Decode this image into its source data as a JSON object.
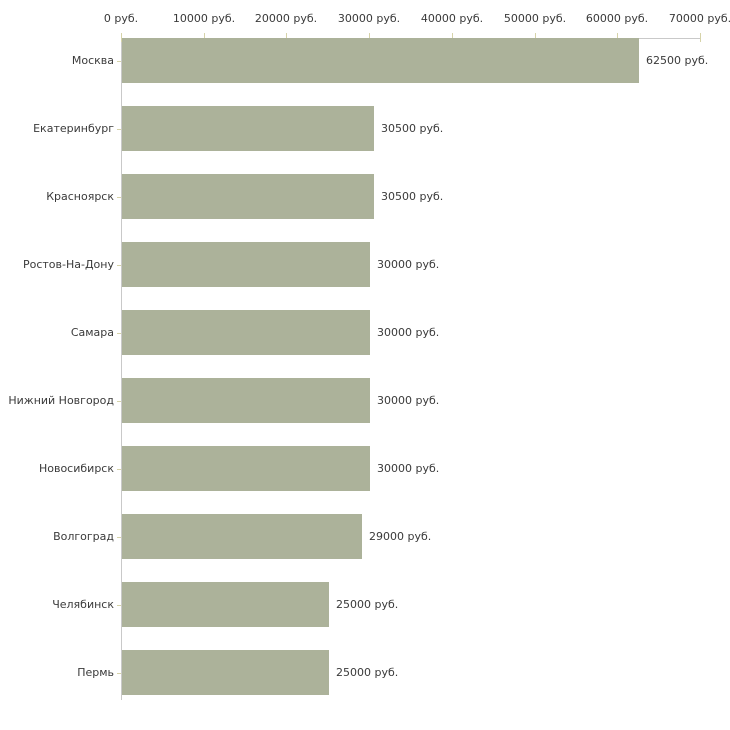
{
  "chart_data": {
    "type": "bar",
    "orientation": "horizontal",
    "title": "",
    "xlabel": "",
    "ylabel": "",
    "categories": [
      "Москва",
      "Екатеринбург",
      "Красноярск",
      "Ростов-На-Дону",
      "Самара",
      "Нижний Новгород",
      "Новосибирск",
      "Волгоград",
      "Челябинск",
      "Пермь"
    ],
    "values": [
      62500,
      30500,
      30500,
      30000,
      30000,
      30000,
      30000,
      29000,
      25000,
      25000
    ],
    "value_labels": [
      "62500 руб.",
      "30500 руб.",
      "30500 руб.",
      "30000 руб.",
      "30000 руб.",
      "30000 руб.",
      "30000 руб.",
      "29000 руб.",
      "25000 руб.",
      "25000 руб."
    ],
    "x_ticks": [
      0,
      10000,
      20000,
      30000,
      40000,
      50000,
      60000,
      70000
    ],
    "x_tick_labels": [
      "0 руб.",
      "10000 руб.",
      "20000 руб.",
      "30000 руб.",
      "40000 руб.",
      "50000 руб.",
      "60000 руб.",
      "70000 руб."
    ],
    "xlim": [
      0,
      70000
    ],
    "grid": false,
    "legend": "none",
    "colors": {
      "bar": "#acb29a",
      "axis_line": "#c9c9c9",
      "tick_mark": "#d6d3a9",
      "text": "#3a3a3a",
      "background": "#ffffff"
    }
  }
}
